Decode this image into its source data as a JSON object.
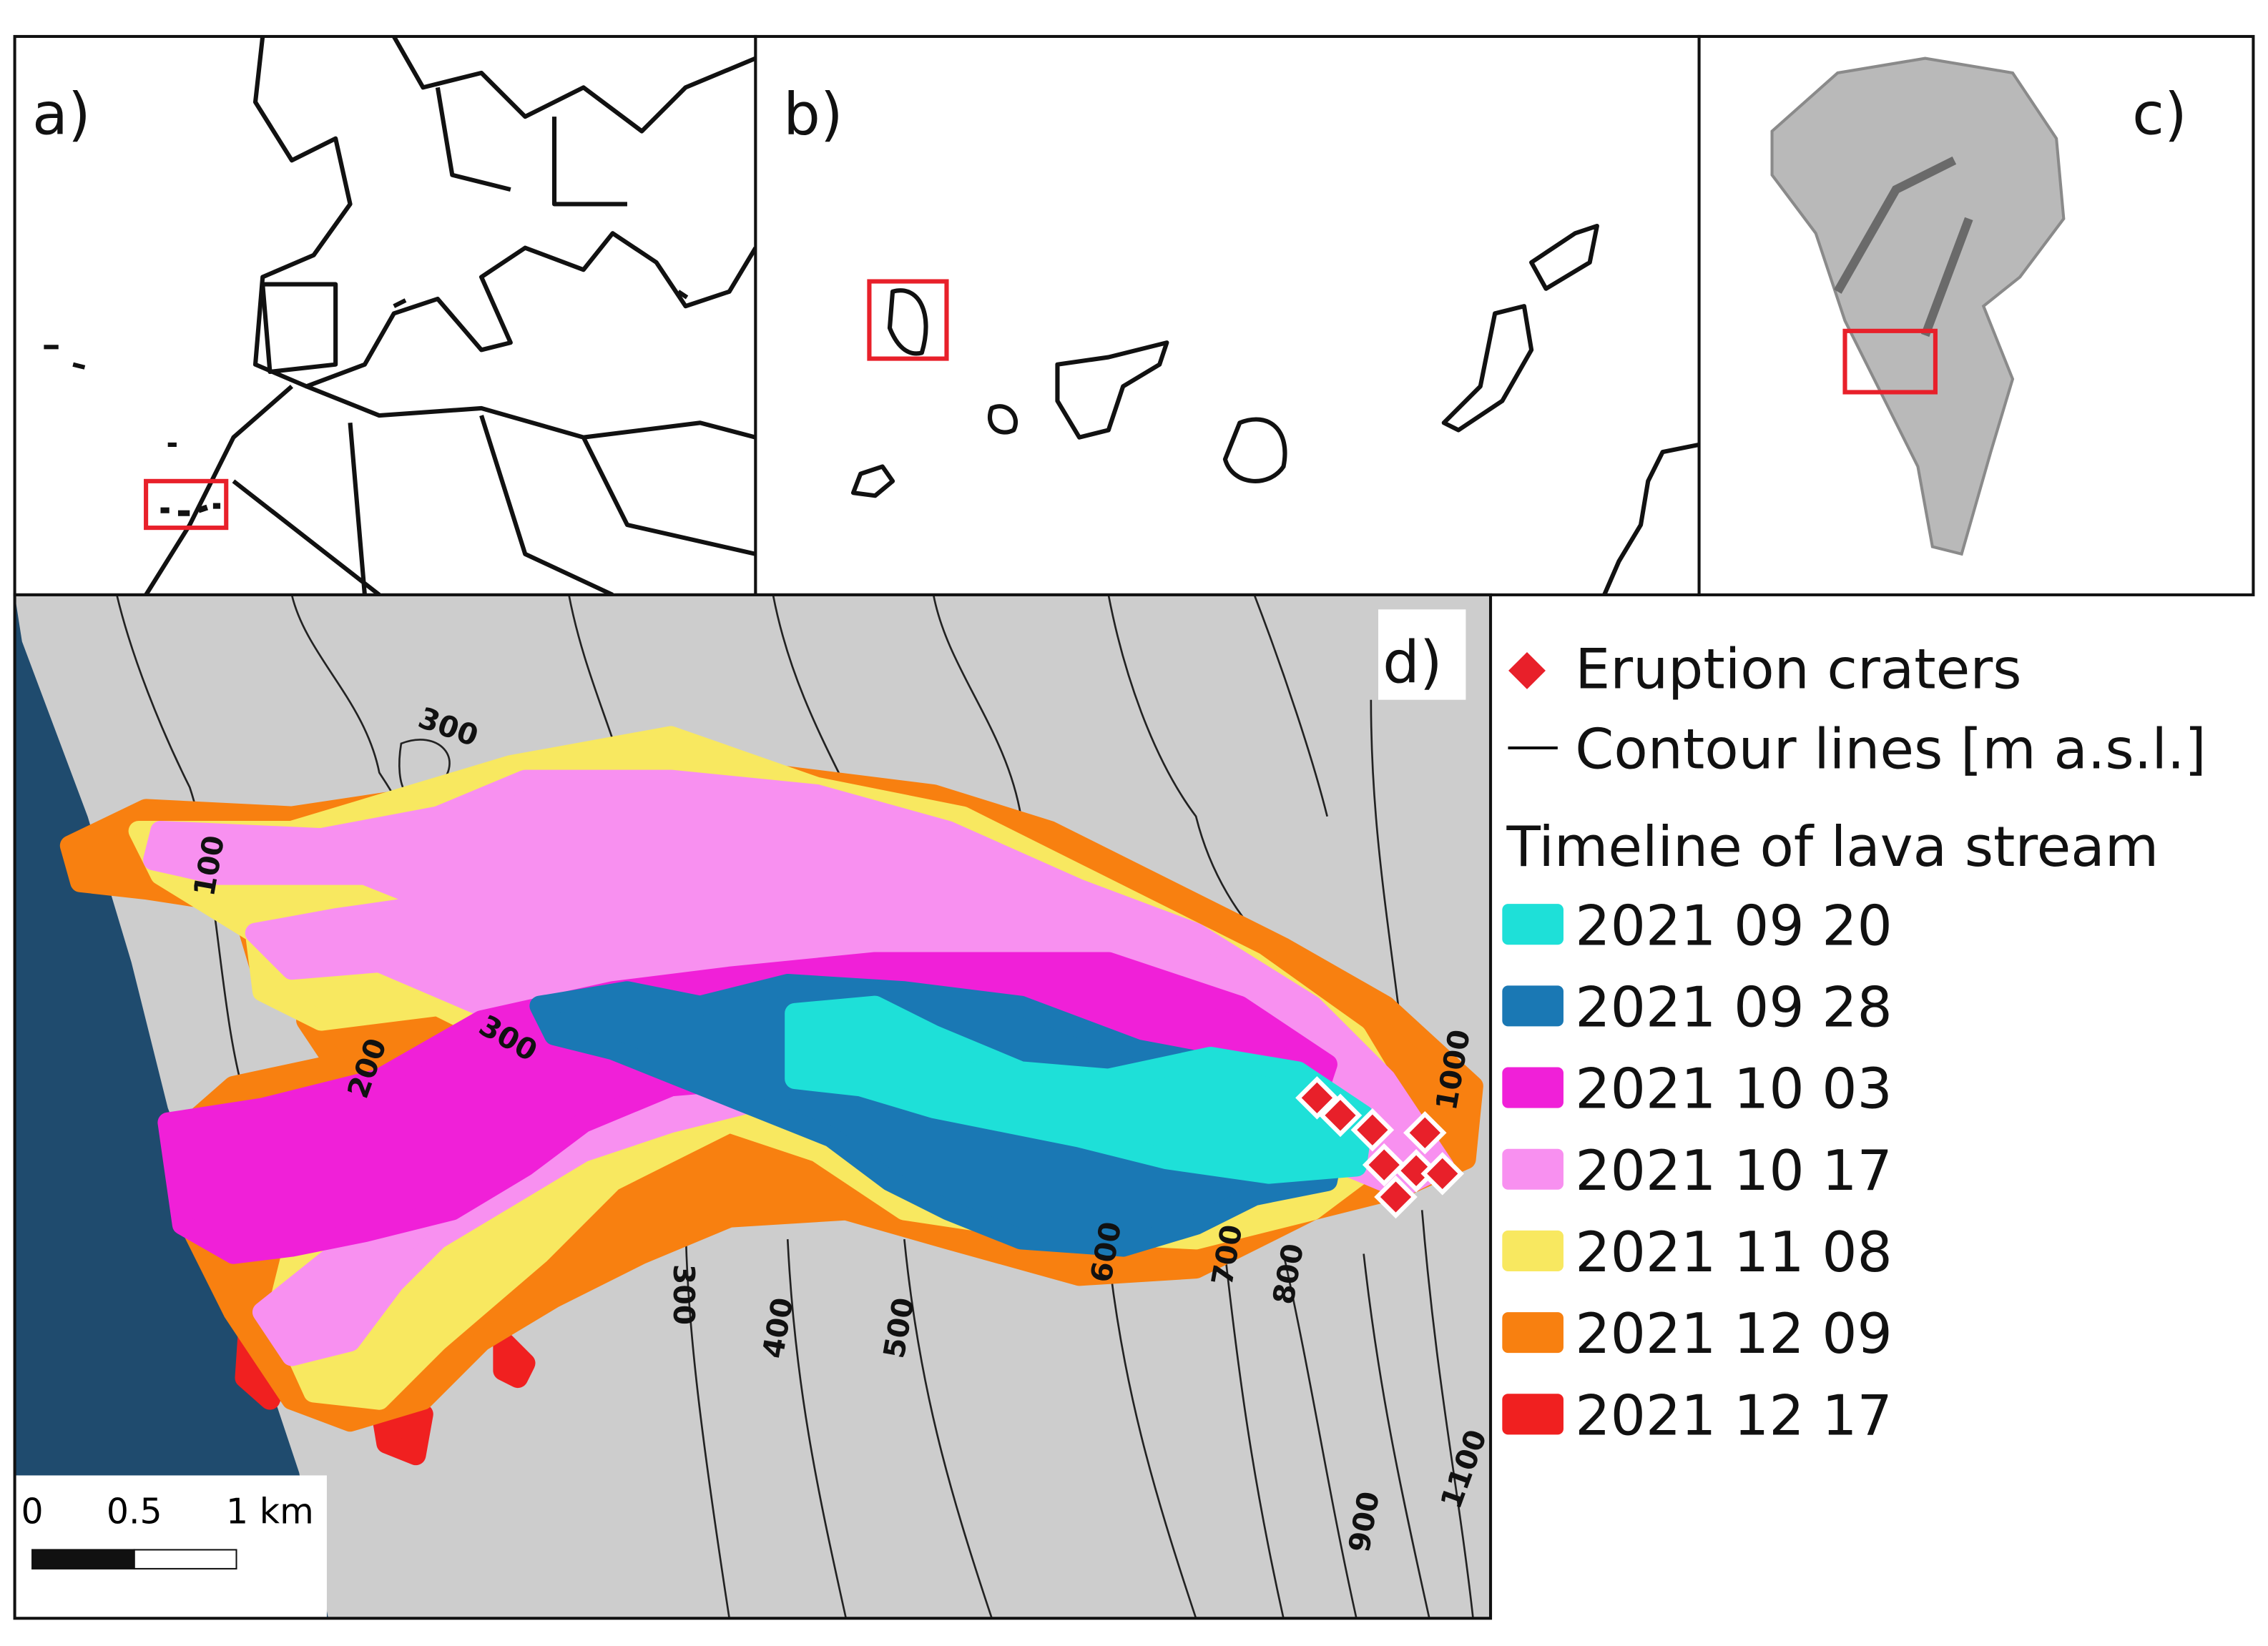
{
  "panels": {
    "a": {
      "label": "a)"
    },
    "b": {
      "label": "b)"
    },
    "c": {
      "label": "c)"
    },
    "d": {
      "label": "d)"
    }
  },
  "legend": {
    "items": [
      {
        "label": "Eruption craters",
        "color": "#e8202a"
      },
      {
        "label": "Contour lines [m a.s.l.]",
        "color": "#000000"
      }
    ],
    "heading": "Timeline of lava stream",
    "dates": [
      {
        "label": "2021 09 20",
        "color": "#1ee0d8"
      },
      {
        "label": "2021 09 28",
        "color": "#1a78b4"
      },
      {
        "label": "2021 10 03",
        "color": "#f020d8"
      },
      {
        "label": "2021 10 17",
        "color": "#f890f0"
      },
      {
        "label": "2021 11 08",
        "color": "#f8e860"
      },
      {
        "label": "2021 12 09",
        "color": "#f88010"
      },
      {
        "label": "2021 12 17",
        "color": "#f02020"
      }
    ]
  },
  "contour_labels": [
    "300",
    "100",
    "200",
    "300",
    "300",
    "400",
    "500",
    "600",
    "700",
    "800",
    "1000",
    "900",
    "1100"
  ],
  "scale_bar": {
    "labels": [
      "0",
      "0.5",
      "1 km"
    ]
  }
}
